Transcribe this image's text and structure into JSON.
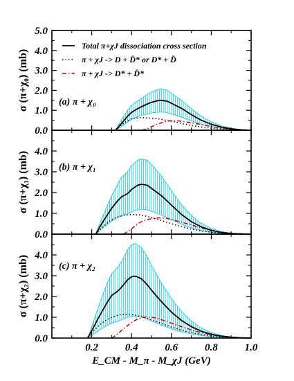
{
  "chart_data": [
    {
      "type": "line",
      "panel_label": "(a)  π + χ₀",
      "ylabel": "σ (π+χ₀)  (mb)",
      "xlim": [
        0.0,
        1.0
      ],
      "ylim": [
        0.0,
        5.0
      ],
      "x_ticks": [
        "0.2",
        "0.4",
        "0.6",
        "0.8",
        "1.0"
      ],
      "y_ticks": [
        "0.0",
        "1.0",
        "2.0",
        "3.0",
        "4.0",
        "5.0"
      ],
      "legend": [
        {
          "label": "Total π+χJ dissociation cross section",
          "style": "solid",
          "color": "#000000"
        },
        {
          "label": "π + χJ -> D + D̄* or D* + D̄",
          "style": "dotted",
          "color": "#000000"
        },
        {
          "label": "π + χJ -> D* + D̄*",
          "style": "dashdot",
          "color": "#cc0000"
        }
      ],
      "series": [
        {
          "name": "Total",
          "x": [
            0.32,
            0.35,
            0.38,
            0.4,
            0.42,
            0.45,
            0.48,
            0.5,
            0.53,
            0.55,
            0.58,
            0.6,
            0.65,
            0.7,
            0.75,
            0.8,
            0.85,
            0.9,
            0.95,
            1.0
          ],
          "y": [
            0.0,
            0.35,
            0.7,
            0.9,
            1.02,
            1.18,
            1.32,
            1.4,
            1.48,
            1.5,
            1.45,
            1.35,
            1.1,
            0.78,
            0.5,
            0.3,
            0.16,
            0.07,
            0.02,
            0.0
          ]
        },
        {
          "name": "Band upper",
          "x": [
            0.32,
            0.35,
            0.38,
            0.4,
            0.42,
            0.45,
            0.48,
            0.5,
            0.53,
            0.55,
            0.58,
            0.6,
            0.65,
            0.7,
            0.75,
            0.8,
            0.85,
            0.9,
            0.95,
            1.0
          ],
          "y": [
            0.0,
            0.55,
            1.0,
            1.25,
            1.4,
            1.6,
            1.8,
            1.92,
            2.03,
            2.08,
            2.0,
            1.85,
            1.5,
            1.08,
            0.7,
            0.42,
            0.22,
            0.1,
            0.03,
            0.0
          ]
        },
        {
          "name": "Band lower",
          "x": [
            0.32,
            0.35,
            0.38,
            0.4,
            0.42,
            0.45,
            0.48,
            0.5,
            0.53,
            0.55,
            0.58,
            0.6,
            0.65,
            0.7,
            0.75,
            0.8,
            0.85,
            0.9,
            0.95,
            1.0
          ],
          "y": [
            0.0,
            0.18,
            0.4,
            0.55,
            0.64,
            0.74,
            0.82,
            0.87,
            0.9,
            0.92,
            0.88,
            0.82,
            0.66,
            0.47,
            0.3,
            0.18,
            0.1,
            0.04,
            0.01,
            0.0
          ]
        },
        {
          "name": "D + D*bar",
          "x": [
            0.32,
            0.35,
            0.38,
            0.4,
            0.43,
            0.46,
            0.5,
            0.55,
            0.6,
            0.65,
            0.7,
            0.75,
            0.8,
            0.85,
            0.9,
            1.0
          ],
          "y": [
            0.0,
            0.28,
            0.48,
            0.57,
            0.62,
            0.63,
            0.6,
            0.55,
            0.45,
            0.34,
            0.24,
            0.16,
            0.1,
            0.05,
            0.02,
            0.0
          ]
        },
        {
          "name": "D* + D*bar",
          "x": [
            0.45,
            0.48,
            0.5,
            0.53,
            0.55,
            0.58,
            0.6,
            0.63,
            0.65,
            0.7,
            0.75,
            0.8,
            0.85,
            0.9,
            0.95,
            1.0
          ],
          "y": [
            0.0,
            0.08,
            0.18,
            0.3,
            0.38,
            0.45,
            0.48,
            0.47,
            0.45,
            0.38,
            0.28,
            0.18,
            0.1,
            0.05,
            0.02,
            0.0
          ]
        }
      ]
    },
    {
      "type": "line",
      "panel_label": "(b)  π + χ₁",
      "ylabel": "σ (π+χ₁)  (mb)",
      "xlim": [
        0.0,
        1.0
      ],
      "ylim": [
        0.0,
        5.0
      ],
      "x_ticks": [
        "0.2",
        "0.4",
        "0.6",
        "0.8",
        "1.0"
      ],
      "y_ticks": [
        "0.0",
        "1.0",
        "2.0",
        "3.0",
        "4.0"
      ],
      "series": [
        {
          "name": "Total",
          "x": [
            0.22,
            0.25,
            0.28,
            0.3,
            0.33,
            0.35,
            0.38,
            0.4,
            0.43,
            0.45,
            0.48,
            0.5,
            0.55,
            0.6,
            0.65,
            0.7,
            0.75,
            0.8,
            0.85,
            0.9,
            0.95,
            1.0
          ],
          "y": [
            0.0,
            0.5,
            0.95,
            1.25,
            1.6,
            1.8,
            1.95,
            2.15,
            2.35,
            2.4,
            2.35,
            2.2,
            1.85,
            1.4,
            0.95,
            0.6,
            0.35,
            0.18,
            0.08,
            0.03,
            0.01,
            0.0
          ]
        },
        {
          "name": "Band upper",
          "x": [
            0.22,
            0.25,
            0.28,
            0.3,
            0.33,
            0.35,
            0.38,
            0.4,
            0.43,
            0.45,
            0.48,
            0.5,
            0.55,
            0.6,
            0.65,
            0.7,
            0.75,
            0.8,
            0.85,
            0.9,
            0.95,
            1.0
          ],
          "y": [
            0.0,
            0.75,
            1.4,
            1.85,
            2.4,
            2.75,
            3.0,
            3.3,
            3.55,
            3.62,
            3.55,
            3.35,
            2.8,
            2.1,
            1.42,
            0.9,
            0.52,
            0.27,
            0.12,
            0.04,
            0.01,
            0.0
          ]
        },
        {
          "name": "Band lower",
          "x": [
            0.22,
            0.25,
            0.28,
            0.3,
            0.33,
            0.35,
            0.38,
            0.4,
            0.43,
            0.45,
            0.48,
            0.5,
            0.55,
            0.6,
            0.65,
            0.7,
            0.75,
            0.8,
            0.85,
            0.9,
            0.95,
            1.0
          ],
          "y": [
            0.0,
            0.25,
            0.48,
            0.62,
            0.8,
            0.9,
            0.98,
            1.08,
            1.17,
            1.2,
            1.17,
            1.1,
            0.92,
            0.7,
            0.48,
            0.3,
            0.18,
            0.09,
            0.04,
            0.01,
            0.0,
            0.0
          ]
        },
        {
          "name": "D + D*bar",
          "x": [
            0.22,
            0.25,
            0.28,
            0.3,
            0.33,
            0.36,
            0.4,
            0.44,
            0.48,
            0.52,
            0.56,
            0.6,
            0.65,
            0.7,
            0.75,
            0.8,
            0.85,
            0.9,
            1.0
          ],
          "y": [
            0.0,
            0.3,
            0.55,
            0.7,
            0.82,
            0.9,
            0.95,
            0.92,
            0.85,
            0.74,
            0.62,
            0.5,
            0.36,
            0.24,
            0.15,
            0.09,
            0.05,
            0.02,
            0.0
          ]
        },
        {
          "name": "D* + D*bar",
          "x": [
            0.36,
            0.4,
            0.43,
            0.46,
            0.5,
            0.53,
            0.55,
            0.58,
            0.6,
            0.65,
            0.7,
            0.75,
            0.8,
            0.85,
            0.9,
            0.95,
            1.0
          ],
          "y": [
            0.0,
            0.25,
            0.5,
            0.65,
            0.75,
            0.78,
            0.78,
            0.75,
            0.7,
            0.58,
            0.44,
            0.3,
            0.19,
            0.1,
            0.05,
            0.02,
            0.0
          ]
        }
      ]
    },
    {
      "type": "line",
      "panel_label": "(c)  π + χ₂",
      "ylabel": "σ (π+χ₂)  (mb)",
      "xlabel": "E_CM - M_π - M_χJ  (GeV)",
      "xlim": [
        0.0,
        1.0
      ],
      "ylim": [
        0.0,
        5.0
      ],
      "x_ticks": [
        "0.2",
        "0.4",
        "0.6",
        "0.8",
        "1.0"
      ],
      "y_ticks": [
        "0.0",
        "1.0",
        "2.0",
        "3.0",
        "4.0"
      ],
      "series": [
        {
          "name": "Total",
          "x": [
            0.18,
            0.2,
            0.23,
            0.25,
            0.28,
            0.3,
            0.33,
            0.35,
            0.38,
            0.4,
            0.42,
            0.45,
            0.48,
            0.5,
            0.55,
            0.6,
            0.65,
            0.7,
            0.75,
            0.8,
            0.85,
            0.9,
            0.95,
            1.0
          ],
          "y": [
            0.0,
            0.35,
            0.9,
            1.25,
            1.75,
            2.05,
            2.25,
            2.45,
            2.8,
            2.95,
            2.98,
            2.85,
            2.55,
            2.3,
            1.75,
            1.25,
            0.85,
            0.55,
            0.33,
            0.18,
            0.09,
            0.04,
            0.01,
            0.0
          ]
        },
        {
          "name": "Band upper",
          "x": [
            0.18,
            0.2,
            0.23,
            0.25,
            0.28,
            0.3,
            0.33,
            0.35,
            0.38,
            0.4,
            0.42,
            0.45,
            0.48,
            0.5,
            0.55,
            0.6,
            0.65,
            0.7,
            0.75,
            0.8,
            0.85,
            0.9,
            0.95,
            1.0
          ],
          "y": [
            0.0,
            0.55,
            1.4,
            1.95,
            2.7,
            3.1,
            3.4,
            3.7,
            4.25,
            4.5,
            4.55,
            4.35,
            3.9,
            3.5,
            2.65,
            1.9,
            1.28,
            0.82,
            0.48,
            0.26,
            0.13,
            0.05,
            0.01,
            0.0
          ]
        },
        {
          "name": "Band lower",
          "x": [
            0.18,
            0.2,
            0.23,
            0.25,
            0.28,
            0.3,
            0.33,
            0.35,
            0.38,
            0.4,
            0.42,
            0.45,
            0.48,
            0.5,
            0.55,
            0.6,
            0.65,
            0.7,
            0.75,
            0.8,
            0.85,
            0.9,
            0.95,
            1.0
          ],
          "y": [
            0.0,
            0.12,
            0.32,
            0.45,
            0.62,
            0.72,
            0.8,
            0.88,
            1.0,
            1.05,
            1.06,
            1.02,
            0.92,
            0.82,
            0.62,
            0.45,
            0.3,
            0.2,
            0.12,
            0.07,
            0.03,
            0.01,
            0.0,
            0.0
          ]
        },
        {
          "name": "D + D*bar",
          "x": [
            0.18,
            0.2,
            0.23,
            0.25,
            0.28,
            0.3,
            0.34,
            0.38,
            0.42,
            0.46,
            0.5,
            0.55,
            0.6,
            0.65,
            0.7,
            0.75,
            0.8,
            0.85,
            0.9,
            1.0
          ],
          "y": [
            0.0,
            0.25,
            0.55,
            0.72,
            0.9,
            1.0,
            1.12,
            1.15,
            1.1,
            1.0,
            0.87,
            0.7,
            0.53,
            0.38,
            0.26,
            0.17,
            0.1,
            0.05,
            0.02,
            0.0
          ]
        },
        {
          "name": "D* + D*bar",
          "x": [
            0.3,
            0.33,
            0.36,
            0.4,
            0.43,
            0.46,
            0.48,
            0.5,
            0.53,
            0.55,
            0.6,
            0.65,
            0.7,
            0.75,
            0.8,
            0.85,
            0.9,
            0.95,
            1.0
          ],
          "y": [
            0.0,
            0.2,
            0.45,
            0.75,
            0.92,
            1.0,
            1.02,
            1.0,
            0.95,
            0.88,
            0.72,
            0.55,
            0.39,
            0.26,
            0.16,
            0.09,
            0.04,
            0.02,
            0.0
          ]
        }
      ]
    }
  ]
}
